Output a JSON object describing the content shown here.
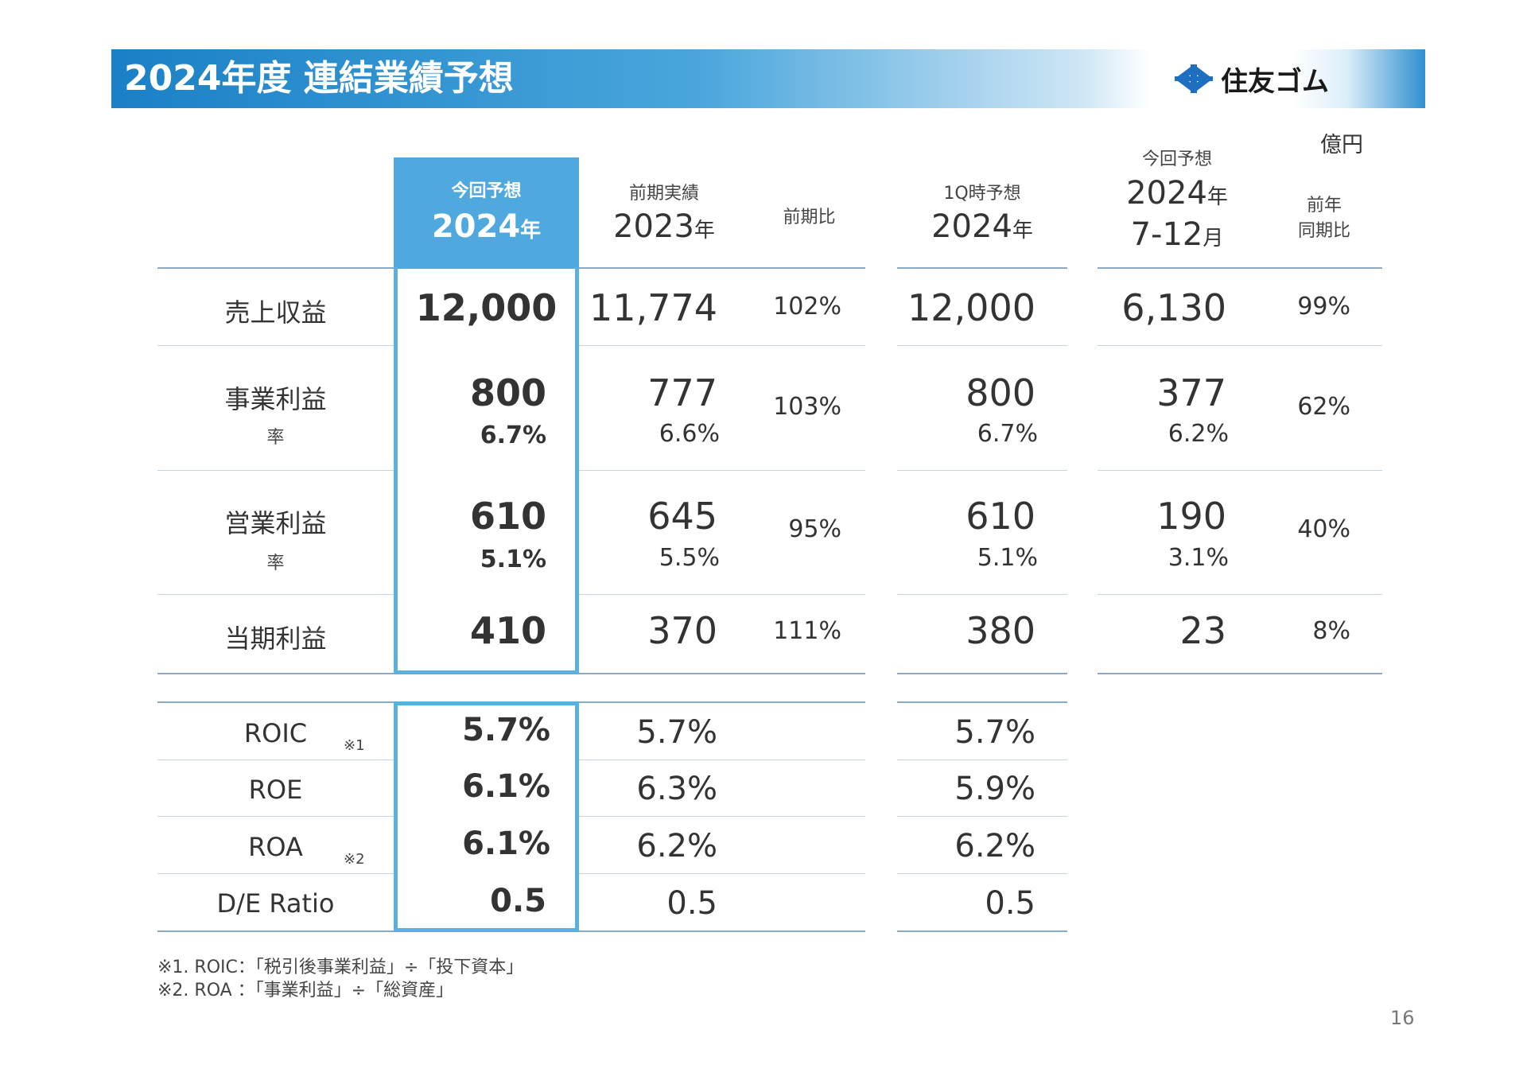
{
  "title": "2024年度 連結業績予想",
  "logo": {
    "name": "住友ゴム",
    "icon": "sumitomo-diamond-icon",
    "color": "#1e6fc0"
  },
  "unit": "億円",
  "colors": {
    "banner": "#1a80c6",
    "highlight": "#4fa8de",
    "border": "#5ab0e0"
  },
  "columns": {
    "current": {
      "label": "今回予想",
      "year": "2024",
      "suffix": "年"
    },
    "prev": {
      "label": "前期実績",
      "year": "2023",
      "suffix": "年"
    },
    "yoy": {
      "label": "前期比"
    },
    "q1": {
      "label": "1Q時予想",
      "year": "2024",
      "suffix": "年"
    },
    "h2": {
      "label": "今回予想",
      "year": "2024",
      "suffix": "年",
      "range": "7-12",
      "range_suffix": "月"
    },
    "h2yoy": {
      "label1": "前年",
      "label2": "同期比"
    }
  },
  "rows": {
    "revenue": {
      "label": "売上収益",
      "current": "12,000",
      "prev": "11,774",
      "yoy": "102%",
      "q1": "12,000",
      "h2": "6,130",
      "h2yoy": "99%"
    },
    "business_profit": {
      "label": "事業利益",
      "rate_label": "率",
      "current": "800",
      "current_rate": "6.7%",
      "prev": "777",
      "prev_rate": "6.6%",
      "yoy": "103%",
      "q1": "800",
      "q1_rate": "6.7%",
      "h2": "377",
      "h2_rate": "6.2%",
      "h2yoy": "62%"
    },
    "operating_profit": {
      "label": "営業利益",
      "rate_label": "率",
      "current": "610",
      "current_rate": "5.1%",
      "prev": "645",
      "prev_rate": "5.5%",
      "yoy": "95%",
      "q1": "610",
      "q1_rate": "5.1%",
      "h2": "190",
      "h2_rate": "3.1%",
      "h2yoy": "40%"
    },
    "net_profit": {
      "label": "当期利益",
      "current": "410",
      "prev": "370",
      "yoy": "111%",
      "q1": "380",
      "h2": "23",
      "h2yoy": "8%"
    }
  },
  "kpis": {
    "roic": {
      "label": "ROIC",
      "note": "※1",
      "current": "5.7%",
      "prev": "5.7%",
      "q1": "5.7%"
    },
    "roe": {
      "label": "ROE",
      "current": "6.1%",
      "prev": "6.3%",
      "q1": "5.9%"
    },
    "roa": {
      "label": "ROA",
      "note": "※2",
      "current": "6.1%",
      "prev": "6.2%",
      "q1": "6.2%"
    },
    "de": {
      "label": "D/E Ratio",
      "current": "0.5",
      "prev": "0.5",
      "q1": "0.5"
    }
  },
  "footnotes": [
    "※1. ROIC：「税引後事業利益」÷「投下資本」",
    "※2. ROA ：「事業利益」÷「総資産」"
  ],
  "page_number": "16"
}
